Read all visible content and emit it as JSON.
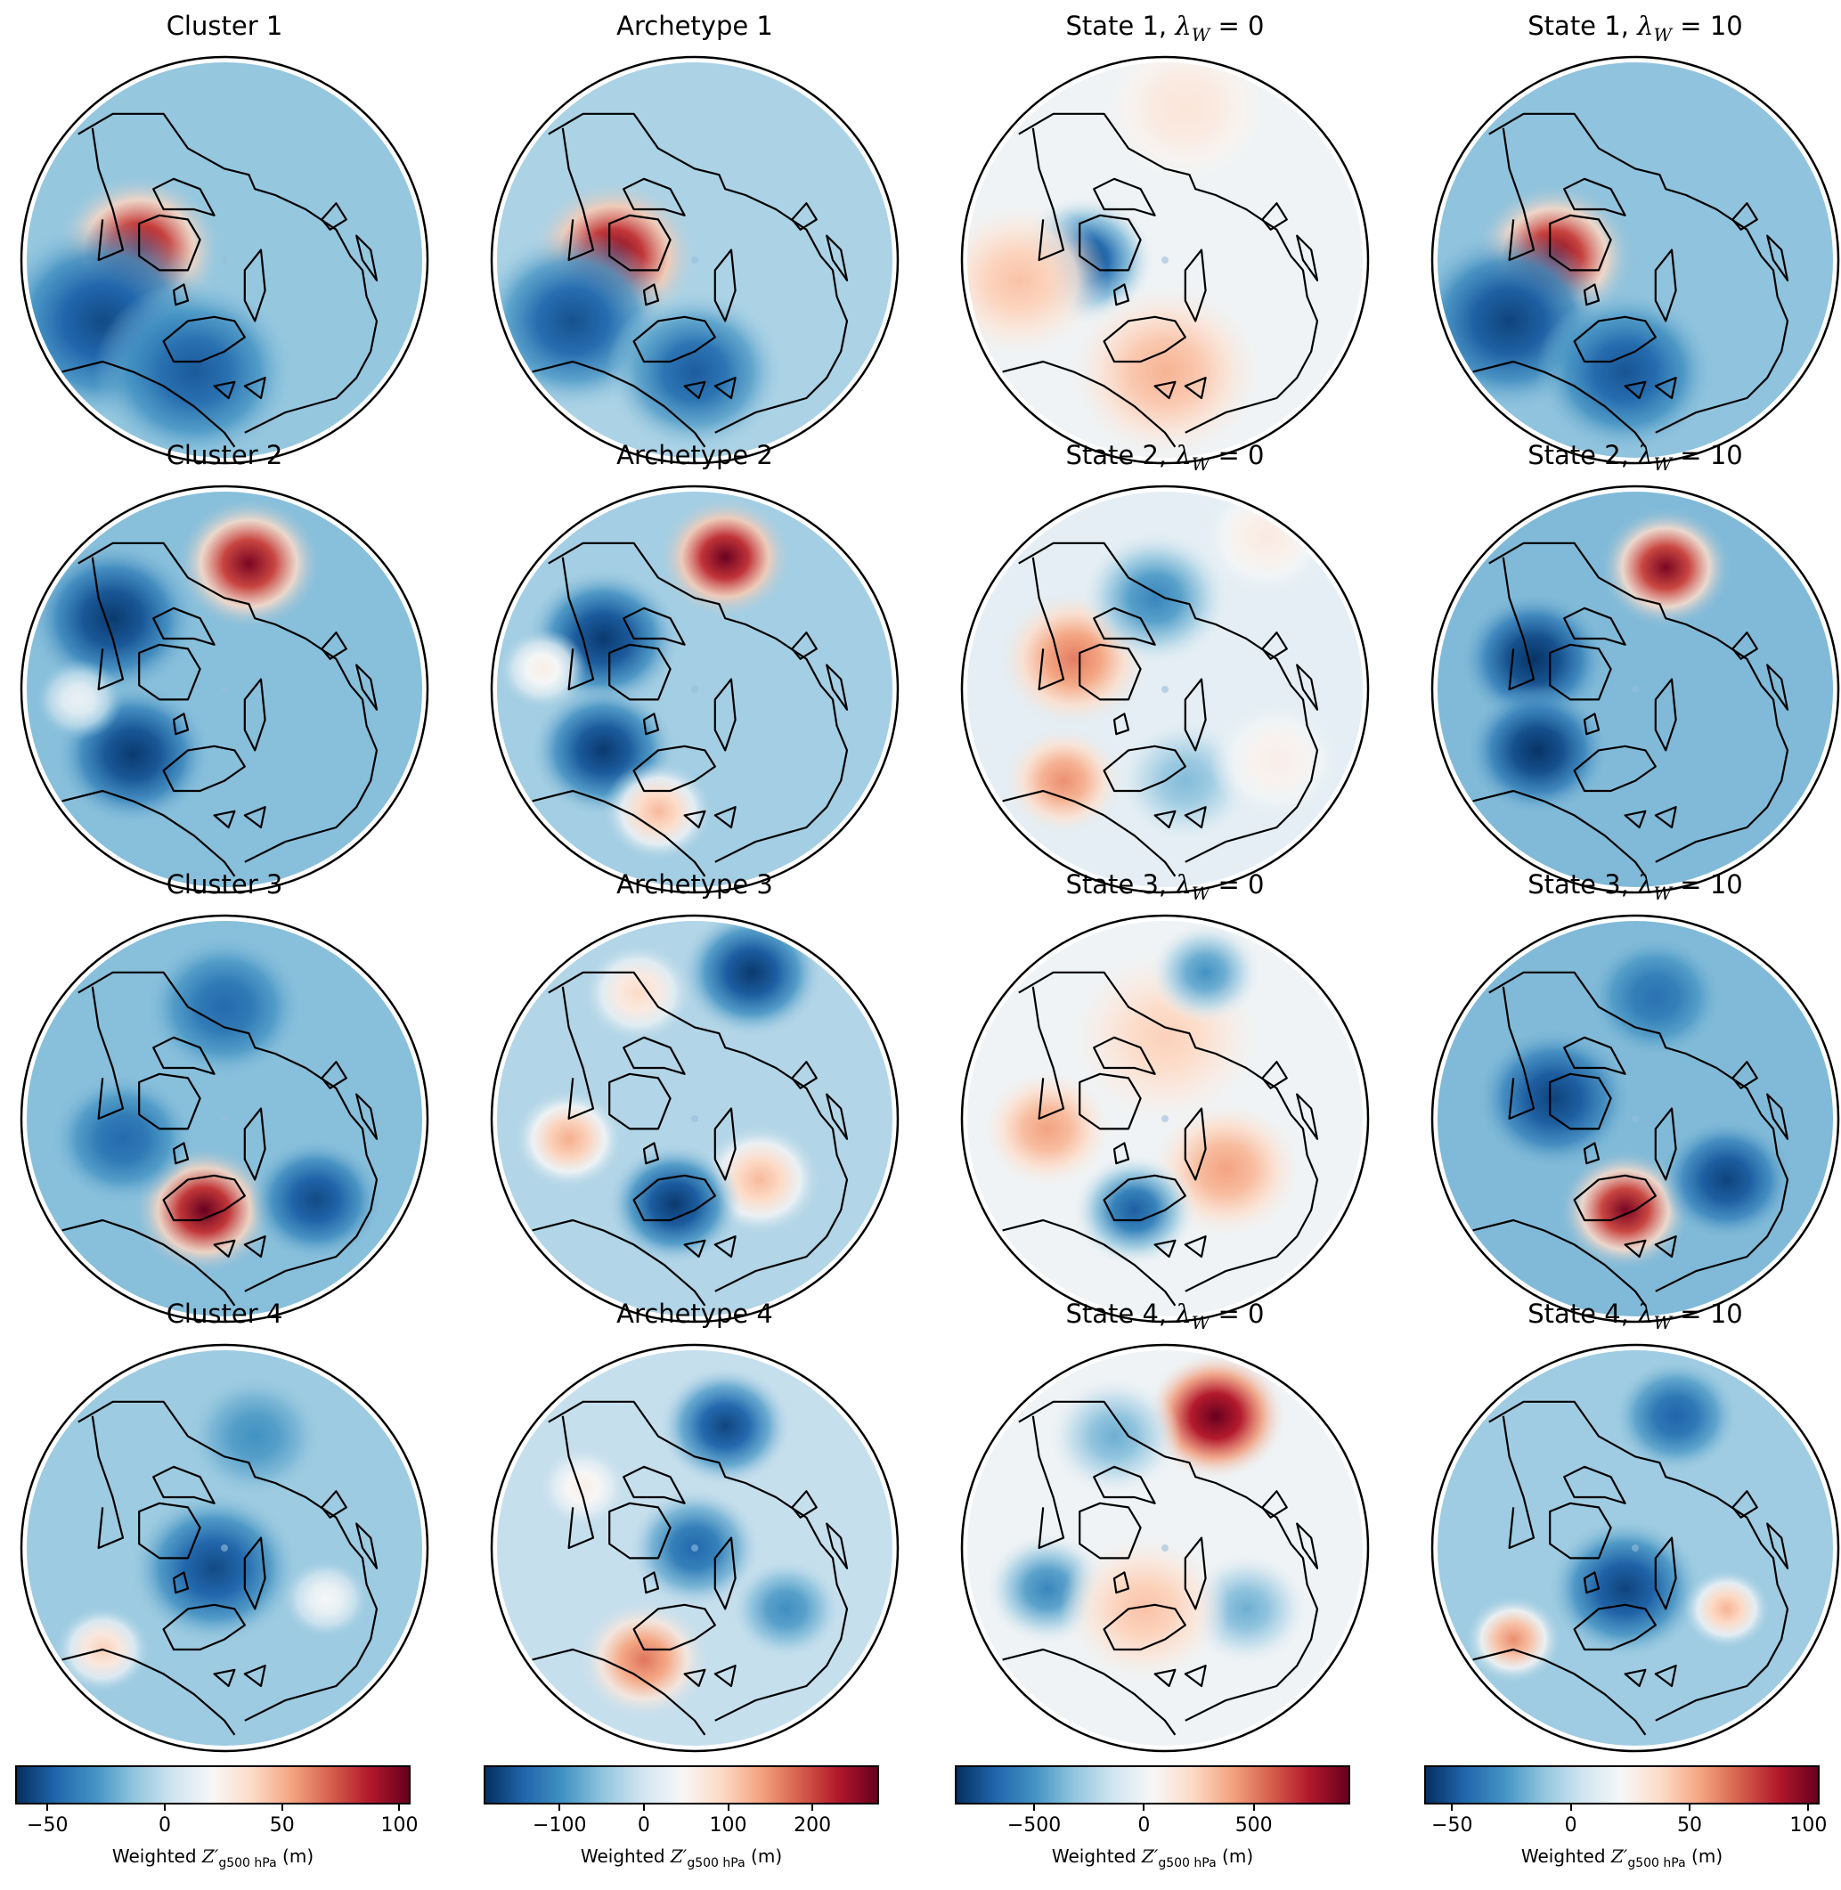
{
  "chart_data": {
    "type": "heatmap",
    "title": "",
    "description": "4x4 grid of north-polar stereographic maps of weighted 500 hPa geopotential height anomalies with coastlines; one colorbar per column (RdBu_r colormap).",
    "colormap": [
      "#053061",
      "#2166ac",
      "#4393c3",
      "#92c5de",
      "#d1e5f0",
      "#f7f7f7",
      "#fddbc7",
      "#f4a582",
      "#d6604d",
      "#b2182b",
      "#67001f"
    ],
    "columns": [
      {
        "name": "Cluster",
        "colorbar": {
          "label_prefix": "Weighted ",
          "label_var": "Z′",
          "label_sub": "g500 hPa",
          "label_suffix": " (m)",
          "vmin": -63,
          "vmax": 104,
          "ticks": [
            -50,
            0,
            50,
            100
          ],
          "tick_labels": [
            "−50",
            "0",
            "50",
            "100"
          ]
        }
      },
      {
        "name": "Archetype",
        "colorbar": {
          "label_prefix": "Weighted ",
          "label_var": "Z′",
          "label_sub": "g500 hPa",
          "label_suffix": " (m)",
          "vmin": -188,
          "vmax": 277,
          "ticks": [
            -100,
            0,
            100,
            200
          ],
          "tick_labels": [
            "−100",
            "0",
            "100",
            "200"
          ]
        }
      },
      {
        "name": "State, λW = 0",
        "colorbar": {
          "label_prefix": "Weighted ",
          "label_var": "Z′",
          "label_sub": "g500 hPa",
          "label_suffix": " (m)",
          "vmin": -853,
          "vmax": 931,
          "ticks": [
            -500,
            0,
            500
          ],
          "tick_labels": [
            "−500",
            "0",
            "500"
          ]
        }
      },
      {
        "name": "State, λW = 10",
        "colorbar": {
          "label_prefix": "Weighted ",
          "label_var": "Z′",
          "label_sub": "g500 hPa",
          "label_suffix": " (m)",
          "vmin": -61,
          "vmax": 104,
          "ticks": [
            -50,
            0,
            50,
            100
          ],
          "tick_labels": [
            "−50",
            "0",
            "50",
            "100"
          ]
        }
      }
    ],
    "panels": [
      {
        "row": 0,
        "col": 0,
        "title_main": "Cluster 1",
        "title_math": "",
        "background": -12,
        "anomalies": [
          {
            "x": -0.42,
            "y": -0.05,
            "r": 0.38,
            "v": 100
          },
          {
            "x": -0.6,
            "y": 0.3,
            "r": 0.5,
            "v": -55
          },
          {
            "x": -0.15,
            "y": 0.55,
            "r": 0.45,
            "v": -50
          }
        ]
      },
      {
        "row": 0,
        "col": 1,
        "title_main": "Archetype 1",
        "title_math": "",
        "background": -30,
        "anomalies": [
          {
            "x": -0.4,
            "y": -0.02,
            "r": 0.38,
            "v": 270
          },
          {
            "x": -0.6,
            "y": 0.3,
            "r": 0.45,
            "v": -160
          },
          {
            "x": 0.0,
            "y": 0.55,
            "r": 0.4,
            "v": -150
          }
        ]
      },
      {
        "row": 0,
        "col": 2,
        "title_main": "State 1, ",
        "title_math": "λ",
        "title_sub": "W",
        "title_eq": " = 0",
        "background": 0,
        "anomalies": [
          {
            "x": -0.4,
            "y": 0.0,
            "r": 0.32,
            "v": -800
          },
          {
            "x": -0.72,
            "y": 0.1,
            "r": 0.4,
            "v": 300
          },
          {
            "x": 0.0,
            "y": 0.55,
            "r": 0.45,
            "v": 350
          },
          {
            "x": 0.1,
            "y": -0.75,
            "r": 0.4,
            "v": 150
          }
        ]
      },
      {
        "row": 0,
        "col": 3,
        "title_main": "State 1, ",
        "title_math": "λ",
        "title_sub": "W",
        "title_eq": " = 10",
        "background": -12,
        "anomalies": [
          {
            "x": -0.4,
            "y": -0.02,
            "r": 0.36,
            "v": 100
          },
          {
            "x": -0.62,
            "y": 0.3,
            "r": 0.45,
            "v": -55
          },
          {
            "x": -0.05,
            "y": 0.55,
            "r": 0.4,
            "v": -50
          }
        ]
      },
      {
        "row": 1,
        "col": 0,
        "title_main": "Cluster 2",
        "title_math": "",
        "background": -15,
        "anomalies": [
          {
            "x": 0.12,
            "y": -0.62,
            "r": 0.33,
            "v": 100
          },
          {
            "x": -0.55,
            "y": -0.35,
            "r": 0.38,
            "v": -60
          },
          {
            "x": -0.45,
            "y": 0.32,
            "r": 0.35,
            "v": -60
          },
          {
            "x": -0.72,
            "y": 0.05,
            "r": 0.2,
            "v": 15
          }
        ]
      },
      {
        "row": 1,
        "col": 1,
        "title_main": "Archetype 2",
        "title_math": "",
        "background": -35,
        "anomalies": [
          {
            "x": 0.15,
            "y": -0.65,
            "r": 0.3,
            "v": 275
          },
          {
            "x": -0.45,
            "y": -0.25,
            "r": 0.35,
            "v": -180
          },
          {
            "x": -0.45,
            "y": 0.3,
            "r": 0.33,
            "v": -180
          },
          {
            "x": -0.18,
            "y": 0.6,
            "r": 0.25,
            "v": 120
          },
          {
            "x": -0.75,
            "y": -0.1,
            "r": 0.2,
            "v": 60
          }
        ]
      },
      {
        "row": 1,
        "col": 2,
        "title_main": "State 2, ",
        "title_math": "λ",
        "title_sub": "W",
        "title_eq": " = 0",
        "background": -50,
        "anomalies": [
          {
            "x": -0.45,
            "y": -0.15,
            "r": 0.35,
            "v": 500
          },
          {
            "x": -0.5,
            "y": 0.45,
            "r": 0.28,
            "v": 450
          },
          {
            "x": -0.05,
            "y": -0.45,
            "r": 0.33,
            "v": -550
          },
          {
            "x": 0.1,
            "y": 0.45,
            "r": 0.3,
            "v": -350
          },
          {
            "x": 0.5,
            "y": -0.75,
            "r": 0.3,
            "v": 120
          },
          {
            "x": 0.55,
            "y": 0.35,
            "r": 0.3,
            "v": 100
          }
        ]
      },
      {
        "row": 1,
        "col": 3,
        "title_main": "State 2, ",
        "title_math": "λ",
        "title_sub": "W",
        "title_eq": " = 10",
        "background": -15,
        "anomalies": [
          {
            "x": 0.15,
            "y": -0.6,
            "r": 0.3,
            "v": 100
          },
          {
            "x": -0.5,
            "y": -0.15,
            "r": 0.33,
            "v": -60
          },
          {
            "x": -0.48,
            "y": 0.3,
            "r": 0.32,
            "v": -60
          }
        ]
      },
      {
        "row": 2,
        "col": 0,
        "title_main": "Cluster 3",
        "title_math": "",
        "background": -15,
        "anomalies": [
          {
            "x": -0.1,
            "y": 0.45,
            "r": 0.32,
            "v": 104
          },
          {
            "x": 0.45,
            "y": 0.4,
            "r": 0.3,
            "v": -55
          },
          {
            "x": -0.5,
            "y": 0.1,
            "r": 0.32,
            "v": -45
          },
          {
            "x": 0.0,
            "y": -0.55,
            "r": 0.35,
            "v": -45
          }
        ]
      },
      {
        "row": 2,
        "col": 1,
        "title_main": "Archetype 3",
        "title_math": "",
        "background": -25,
        "anomalies": [
          {
            "x": 0.28,
            "y": -0.72,
            "r": 0.32,
            "v": -180
          },
          {
            "x": -0.28,
            "y": -0.62,
            "r": 0.25,
            "v": 90
          },
          {
            "x": -0.62,
            "y": 0.1,
            "r": 0.25,
            "v": 130
          },
          {
            "x": 0.32,
            "y": 0.3,
            "r": 0.28,
            "v": 120
          },
          {
            "x": -0.1,
            "y": 0.42,
            "r": 0.3,
            "v": -180
          }
        ]
      },
      {
        "row": 2,
        "col": 2,
        "title_main": "State 3, ",
        "title_math": "λ",
        "title_sub": "W",
        "title_eq": " = 0",
        "background": 0,
        "anomalies": [
          {
            "x": -0.58,
            "y": 0.05,
            "r": 0.3,
            "v": 400
          },
          {
            "x": 0.3,
            "y": 0.25,
            "r": 0.35,
            "v": 400
          },
          {
            "x": 0.0,
            "y": -0.4,
            "r": 0.45,
            "v": 250
          },
          {
            "x": -0.15,
            "y": 0.45,
            "r": 0.28,
            "v": -700
          },
          {
            "x": 0.2,
            "y": -0.72,
            "r": 0.25,
            "v": -500
          }
        ]
      },
      {
        "row": 2,
        "col": 3,
        "title_main": "State 3, ",
        "title_math": "λ",
        "title_sub": "W",
        "title_eq": " = 10",
        "background": -15,
        "anomalies": [
          {
            "x": -0.05,
            "y": 0.45,
            "r": 0.3,
            "v": 100
          },
          {
            "x": 0.45,
            "y": 0.3,
            "r": 0.3,
            "v": -55
          },
          {
            "x": -0.4,
            "y": -0.1,
            "r": 0.35,
            "v": -55
          },
          {
            "x": 0.1,
            "y": -0.6,
            "r": 0.3,
            "v": -40
          }
        ]
      },
      {
        "row": 3,
        "col": 0,
        "title_main": "Cluster 4",
        "title_math": "",
        "background": -10,
        "anomalies": [
          {
            "x": -0.05,
            "y": 0.1,
            "r": 0.38,
            "v": -55
          },
          {
            "x": -0.6,
            "y": 0.5,
            "r": 0.22,
            "v": 40
          },
          {
            "x": 0.5,
            "y": 0.25,
            "r": 0.2,
            "v": 20
          },
          {
            "x": 0.15,
            "y": -0.55,
            "r": 0.3,
            "v": -30
          }
        ]
      },
      {
        "row": 3,
        "col": 1,
        "title_main": "Archetype 4",
        "title_math": "",
        "background": -10,
        "anomalies": [
          {
            "x": 0.15,
            "y": -0.6,
            "r": 0.3,
            "v": -170
          },
          {
            "x": -0.25,
            "y": 0.55,
            "r": 0.3,
            "v": 170
          },
          {
            "x": 0.0,
            "y": 0.0,
            "r": 0.3,
            "v": -140
          },
          {
            "x": 0.45,
            "y": 0.3,
            "r": 0.25,
            "v": -100
          },
          {
            "x": -0.55,
            "y": -0.3,
            "r": 0.2,
            "v": 60
          }
        ]
      },
      {
        "row": 3,
        "col": 2,
        "title_main": "State 4, ",
        "title_math": "λ",
        "title_sub": "W",
        "title_eq": " = 0",
        "background": 0,
        "anomalies": [
          {
            "x": 0.25,
            "y": -0.65,
            "r": 0.32,
            "v": 930
          },
          {
            "x": -0.25,
            "y": -0.55,
            "r": 0.3,
            "v": -400
          },
          {
            "x": -0.58,
            "y": 0.2,
            "r": 0.28,
            "v": -550
          },
          {
            "x": 0.4,
            "y": 0.3,
            "r": 0.28,
            "v": -400
          },
          {
            "x": -0.1,
            "y": 0.3,
            "r": 0.38,
            "v": 300
          }
        ]
      },
      {
        "row": 3,
        "col": 3,
        "title_main": "State 4, ",
        "title_math": "λ",
        "title_sub": "W",
        "title_eq": " = 10",
        "background": -8,
        "anomalies": [
          {
            "x": -0.05,
            "y": 0.2,
            "r": 0.35,
            "v": -55
          },
          {
            "x": 0.2,
            "y": -0.65,
            "r": 0.28,
            "v": -45
          },
          {
            "x": -0.6,
            "y": 0.45,
            "r": 0.22,
            "v": 60
          },
          {
            "x": 0.45,
            "y": 0.3,
            "r": 0.2,
            "v": 50
          }
        ]
      }
    ]
  }
}
